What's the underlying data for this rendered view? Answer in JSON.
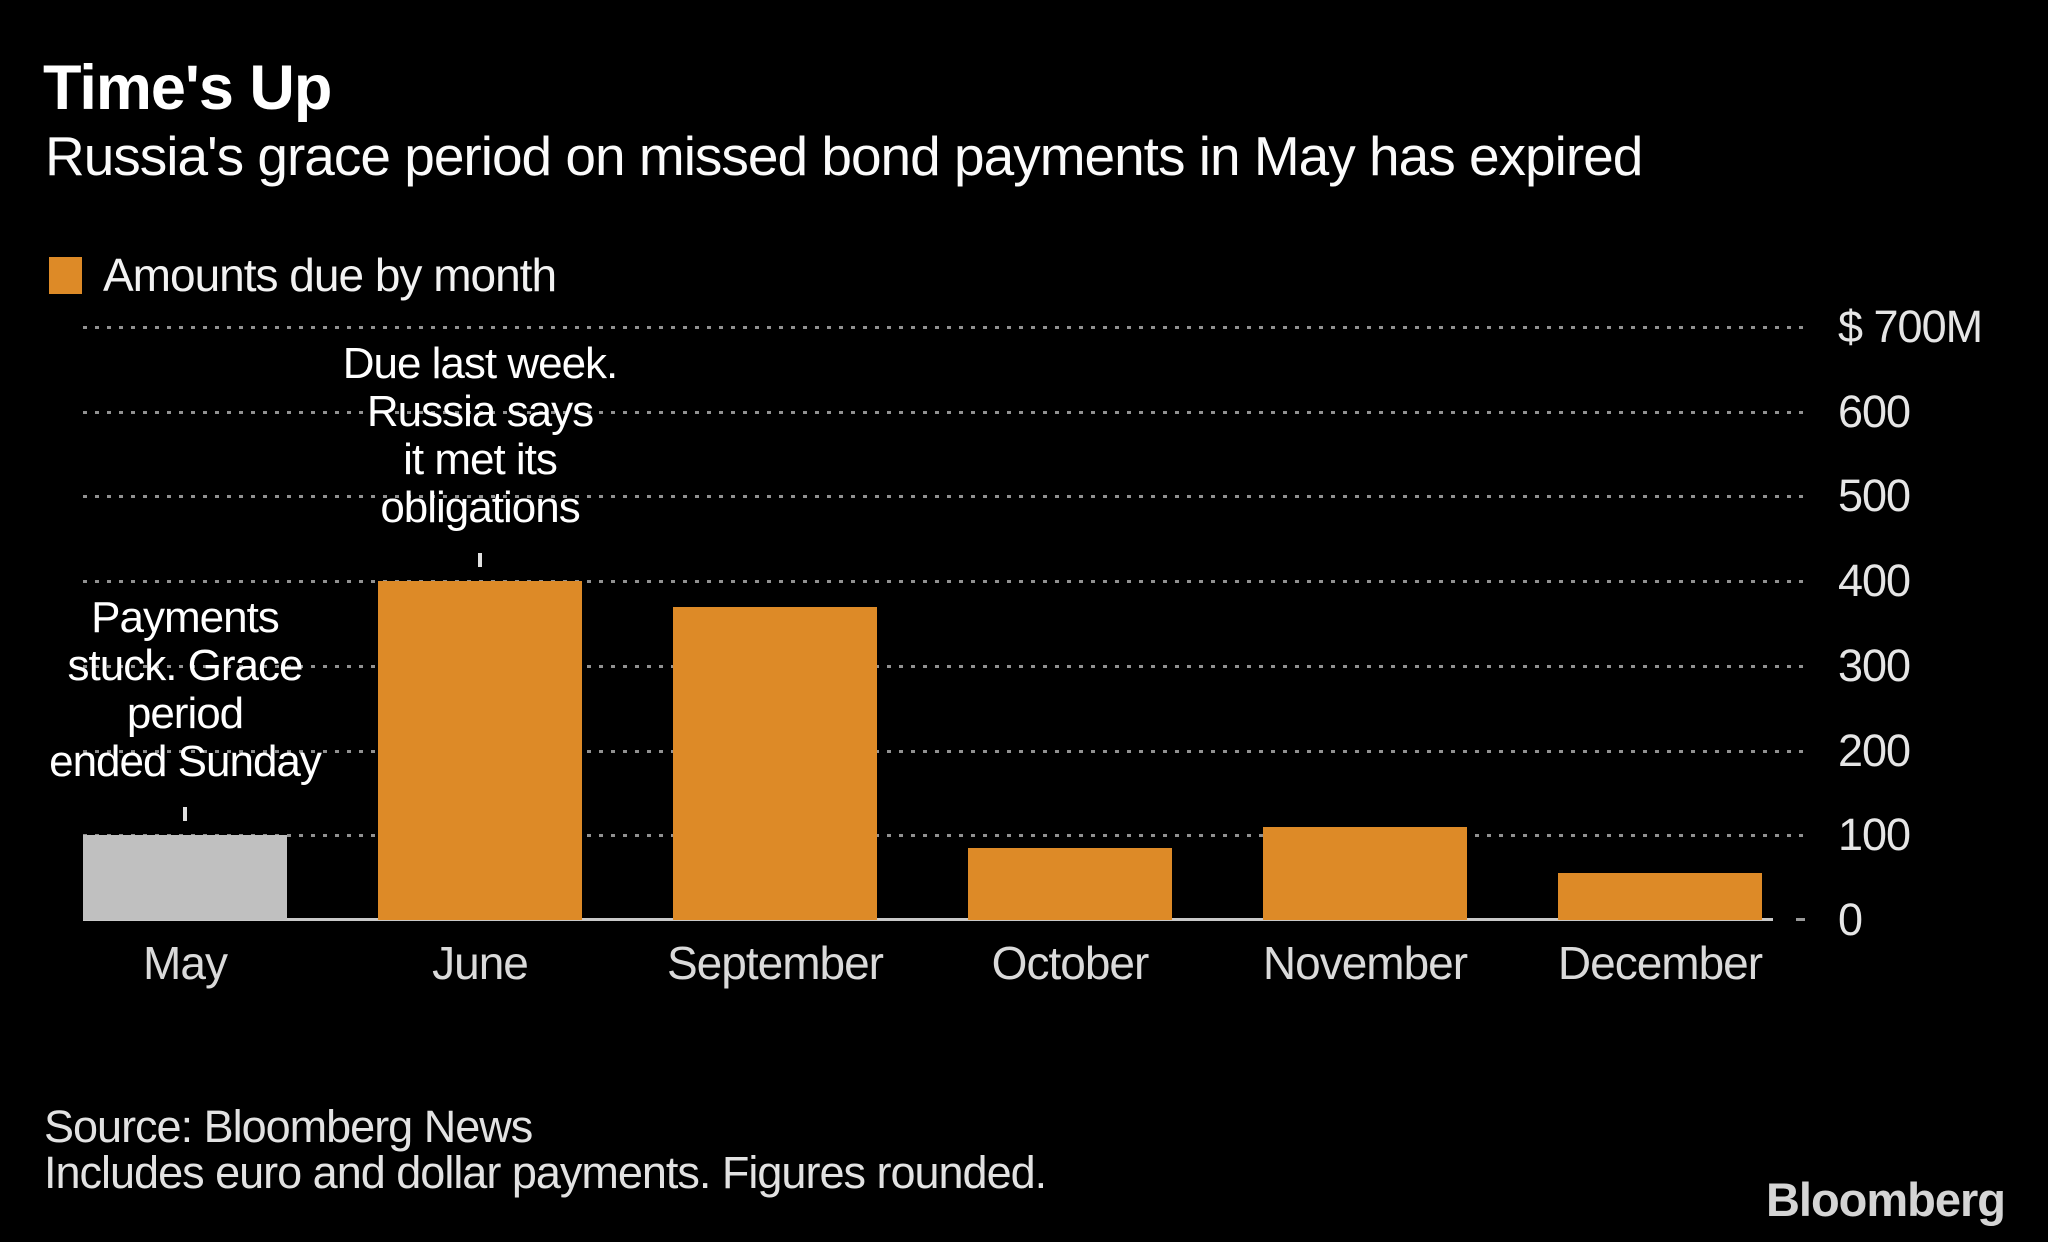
{
  "header": {
    "title": "Time's Up",
    "subtitle": "Russia's grace period on missed bond payments in May has expired"
  },
  "legend": {
    "label": "Amounts due by month",
    "swatch_color": "#DD8A27"
  },
  "chart_data": {
    "type": "bar",
    "title": "Time's Up",
    "subtitle": "Russia's grace period on missed bond payments in May has expired",
    "legend_label": "Amounts due by month",
    "categories": [
      "May",
      "June",
      "September",
      "October",
      "November",
      "December"
    ],
    "series": [
      {
        "name": "Amounts due by month",
        "values": [
          100,
          400,
          370,
          85,
          110,
          55
        ]
      }
    ],
    "bar_colors": [
      "#C0C0C0",
      "#DD8A27",
      "#DD8A27",
      "#DD8A27",
      "#DD8A27",
      "#DD8A27"
    ],
    "ylim": [
      0,
      700
    ],
    "yticks": [
      700,
      600,
      500,
      400,
      300,
      200,
      100,
      0
    ],
    "ytick_labels": [
      "$ 700M",
      "600",
      "500",
      "400",
      "300",
      "200",
      "100",
      "0"
    ],
    "y_axis_position": "right",
    "grid": "horizontal-dotted",
    "annotations": [
      {
        "category": "May",
        "text": "Payments stuck. Grace period ended Sunday",
        "lines": [
          "Payments",
          "stuck. Grace",
          "period",
          "ended Sunday"
        ]
      },
      {
        "category": "June",
        "text": "Due last week. Russia says it met its obligations",
        "lines": [
          "Due last week.",
          "Russia says",
          "it met its",
          "obligations"
        ]
      }
    ]
  },
  "footer": {
    "source_line": "Source: Bloomberg News",
    "note_line": "Includes euro and dollar payments. Figures rounded.",
    "brand": "Bloomberg"
  },
  "colors": {
    "background": "#000000",
    "bar_orange": "#DD8A27",
    "bar_gray": "#C0C0C0",
    "text_white": "#FFFFFF",
    "axis_text": "#E5E5E5",
    "gridline": "#919191",
    "baseline": "#C9C9C9"
  }
}
